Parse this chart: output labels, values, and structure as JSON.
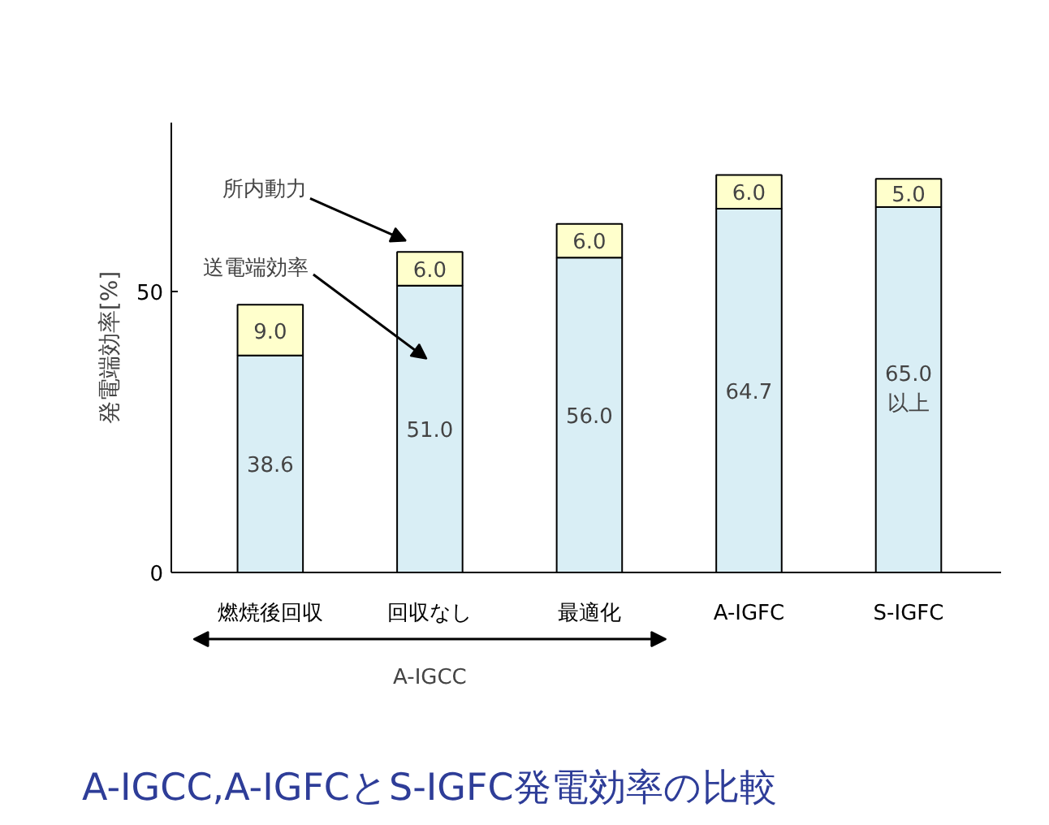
{
  "chart_data": {
    "type": "bar",
    "stacked": true,
    "title": "A-IGCC,A-IGFCとS-IGFC発電効率の比較",
    "ylabel": "発電端効率[%]",
    "categories": [
      "燃焼後回収",
      "回収なし",
      "最適化",
      "A-IGFC",
      "S-IGFC"
    ],
    "series": [
      {
        "name": "送電端効率",
        "color": "#d9eef5",
        "values": [
          38.6,
          51.0,
          56.0,
          64.7,
          65.0
        ],
        "value_labels": [
          "38.6",
          "51.0",
          "56.0",
          "64.7",
          "65.0\n以上"
        ]
      },
      {
        "name": "所内動力",
        "color": "#ffffcc",
        "values": [
          9.0,
          6.0,
          6.0,
          6.0,
          5.0
        ],
        "value_labels": [
          "9.0",
          "6.0",
          "6.0",
          "6.0",
          "5.0"
        ]
      }
    ],
    "ylim": [
      0,
      80
    ],
    "yticks": [
      0,
      50
    ],
    "grid": false,
    "legend": false,
    "annotations": [
      "A-IGCC"
    ]
  }
}
